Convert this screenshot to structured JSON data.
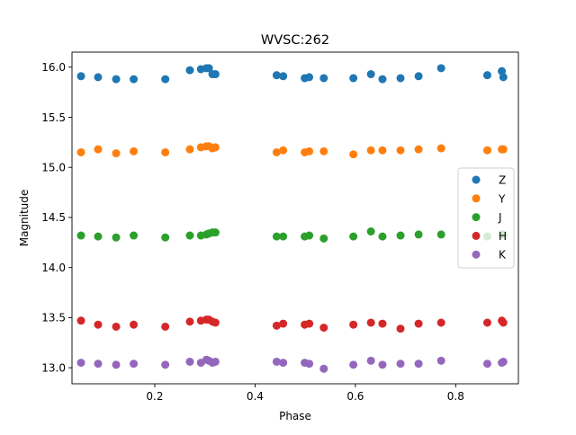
{
  "chart_data": {
    "type": "scatter",
    "title": "WVSC:262",
    "xlabel": "Phase",
    "ylabel": "Magnitude",
    "xlim": [
      0.035,
      0.925
    ],
    "ylim": [
      12.84,
      16.15
    ],
    "xticks": [
      0.2,
      0.4,
      0.6,
      0.8
    ],
    "yticks": [
      13.0,
      13.5,
      14.0,
      14.5,
      15.0,
      15.5,
      16.0
    ],
    "xtick_labels": [
      "0.2",
      "0.4",
      "0.6",
      "0.8"
    ],
    "ytick_labels": [
      "13.0",
      "13.5",
      "14.0",
      "14.5",
      "15.0",
      "15.5",
      "16.0"
    ],
    "grid": false,
    "legend_position": "center-right",
    "x": [
      0.053,
      0.087,
      0.123,
      0.158,
      0.221,
      0.27,
      0.292,
      0.303,
      0.308,
      0.315,
      0.321,
      0.443,
      0.456,
      0.499,
      0.508,
      0.537,
      0.596,
      0.631,
      0.654,
      0.69,
      0.726,
      0.771,
      0.863,
      0.892,
      0.895
    ],
    "series": [
      {
        "name": "Z",
        "color": "#1f77b4",
        "values": [
          15.91,
          15.9,
          15.88,
          15.88,
          15.88,
          15.97,
          15.98,
          15.99,
          15.99,
          15.93,
          15.93,
          15.92,
          15.91,
          15.89,
          15.9,
          15.89,
          15.89,
          15.93,
          15.88,
          15.89,
          15.91,
          15.99,
          15.92,
          15.96,
          15.9
        ]
      },
      {
        "name": "Y",
        "color": "#ff7f0e",
        "values": [
          15.15,
          15.18,
          15.14,
          15.16,
          15.15,
          15.18,
          15.2,
          15.21,
          15.21,
          15.19,
          15.2,
          15.15,
          15.17,
          15.15,
          15.16,
          15.16,
          15.13,
          15.17,
          15.17,
          15.17,
          15.18,
          15.19,
          15.17,
          15.18,
          15.18
        ]
      },
      {
        "name": "J",
        "color": "#2ca02c",
        "values": [
          14.32,
          14.31,
          14.3,
          14.32,
          14.3,
          14.32,
          14.32,
          14.33,
          14.34,
          14.35,
          14.35,
          14.31,
          14.31,
          14.31,
          14.32,
          14.29,
          14.31,
          14.36,
          14.31,
          14.32,
          14.33,
          14.33,
          14.31,
          14.33,
          14.33
        ]
      },
      {
        "name": "H",
        "color": "#d62728",
        "values": [
          13.47,
          13.43,
          13.41,
          13.43,
          13.41,
          13.46,
          13.47,
          13.48,
          13.48,
          13.46,
          13.45,
          13.42,
          13.44,
          13.43,
          13.44,
          13.4,
          13.43,
          13.45,
          13.44,
          13.39,
          13.44,
          13.45,
          13.45,
          13.47,
          13.45
        ]
      },
      {
        "name": "K",
        "color": "#9467bd",
        "values": [
          13.05,
          13.04,
          13.03,
          13.04,
          13.03,
          13.06,
          13.05,
          13.08,
          13.07,
          13.05,
          13.06,
          13.06,
          13.05,
          13.05,
          13.04,
          12.99,
          13.03,
          13.07,
          13.03,
          13.04,
          13.04,
          13.07,
          13.04,
          13.05,
          13.06
        ]
      }
    ]
  }
}
